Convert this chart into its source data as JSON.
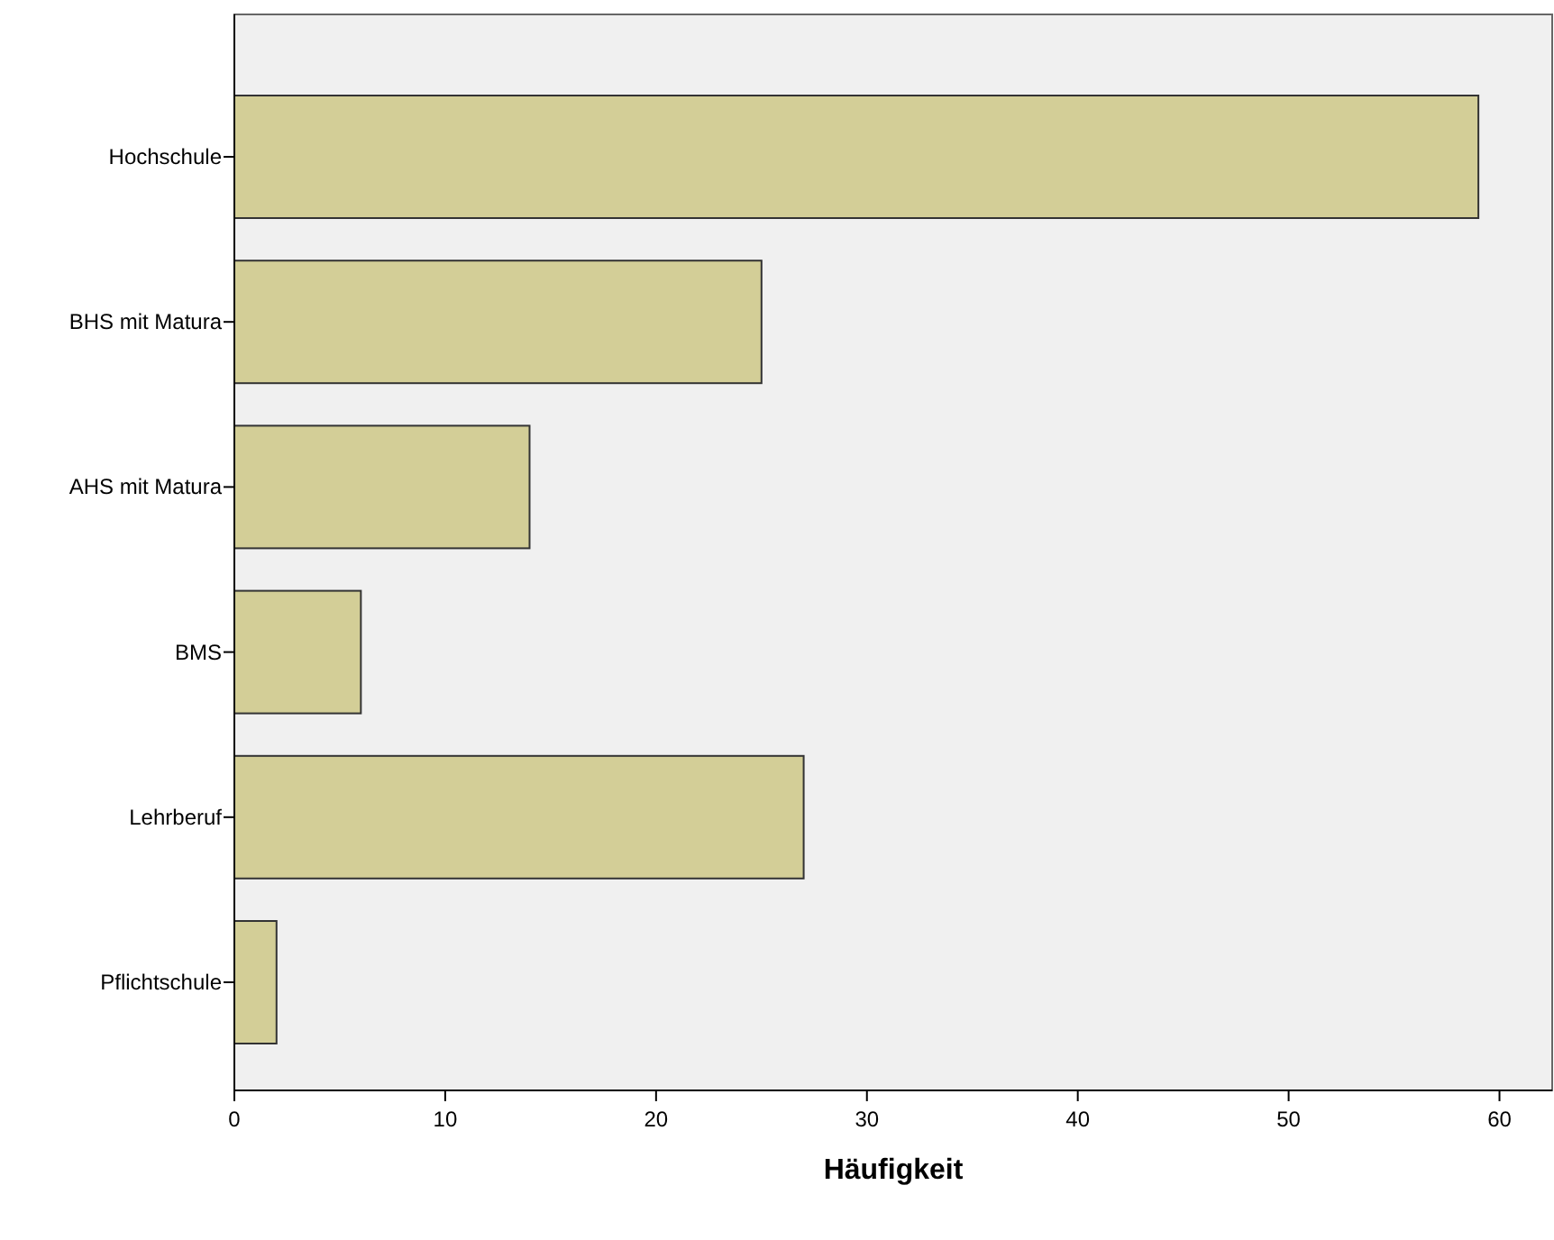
{
  "chart_data": {
    "type": "bar",
    "orientation": "horizontal",
    "xlabel": "Häufigkeit",
    "categories": [
      "Hochschule",
      "BHS mit Matura",
      "AHS mit Matura",
      "BMS",
      "Lehrberuf",
      "Pflichtschule"
    ],
    "values": [
      59,
      25,
      14,
      6,
      27,
      2
    ],
    "color": "#d3ce97",
    "xlim": [
      0,
      62.5
    ],
    "xticks": [
      0,
      10,
      20,
      30,
      40,
      50,
      60
    ],
    "grid": false
  }
}
